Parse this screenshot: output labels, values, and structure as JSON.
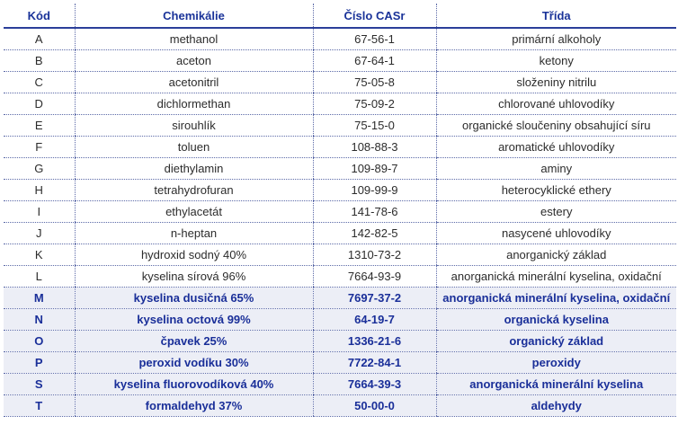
{
  "colors": {
    "header_text": "#1a3399",
    "highlight_text": "#1a2f99",
    "highlight_bg": "#eceef6",
    "body_text": "#2c2c2c"
  },
  "headers": {
    "code": "Kód",
    "chemical": "Chemikálie",
    "cas": "Číslo CASr",
    "class": "Třída"
  },
  "rows": [
    {
      "code": "A",
      "chemical": "methanol",
      "cas": "67-56-1",
      "class": "primární alkoholy",
      "highlight": false
    },
    {
      "code": "B",
      "chemical": "aceton",
      "cas": "67-64-1",
      "class": "ketony",
      "highlight": false
    },
    {
      "code": "C",
      "chemical": "acetonitril",
      "cas": "75-05-8",
      "class": "složeniny nitrilu",
      "highlight": false
    },
    {
      "code": "D",
      "chemical": "dichlormethan",
      "cas": "75-09-2",
      "class": "chlorované uhlovodíky",
      "highlight": false
    },
    {
      "code": "E",
      "chemical": "sirouhlík",
      "cas": "75-15-0",
      "class": "organické sloučeniny obsahující síru",
      "highlight": false
    },
    {
      "code": "F",
      "chemical": "toluen",
      "cas": "108-88-3",
      "class": "aromatické uhlovodíky",
      "highlight": false
    },
    {
      "code": "G",
      "chemical": "diethylamin",
      "cas": "109-89-7",
      "class": "aminy",
      "highlight": false
    },
    {
      "code": "H",
      "chemical": "tetrahydrofuran",
      "cas": "109-99-9",
      "class": "heterocyklické ethery",
      "highlight": false
    },
    {
      "code": "I",
      "chemical": "ethylacetát",
      "cas": "141-78-6",
      "class": "estery",
      "highlight": false
    },
    {
      "code": "J",
      "chemical": "n-heptan",
      "cas": "142-82-5",
      "class": "nasycené uhlovodíky",
      "highlight": false
    },
    {
      "code": "K",
      "chemical": "hydroxid sodný 40%",
      "cas": "1310-73-2",
      "class": "anorganický základ",
      "highlight": false
    },
    {
      "code": "L",
      "chemical": "kyselina sírová 96%",
      "cas": "7664-93-9",
      "class": "anorganická minerální kyselina, oxidační",
      "highlight": false
    },
    {
      "code": "M",
      "chemical": "kyselina dusičná 65%",
      "cas": "7697-37-2",
      "class": "anorganická minerální kyselina, oxidační",
      "highlight": true
    },
    {
      "code": "N",
      "chemical": "kyselina octová 99%",
      "cas": "64-19-7",
      "class": "organická kyselina",
      "highlight": true
    },
    {
      "code": "O",
      "chemical": "čpavek 25%",
      "cas": "1336-21-6",
      "class": "organický základ",
      "highlight": true
    },
    {
      "code": "P",
      "chemical": "peroxid vodíku 30%",
      "cas": "7722-84-1",
      "class": "peroxidy",
      "highlight": true
    },
    {
      "code": "S",
      "chemical": "kyselina fluorovodíková 40%",
      "cas": "7664-39-3",
      "class": "anorganická minerální kyselina",
      "highlight": true
    },
    {
      "code": "T",
      "chemical": "formaldehyd 37%",
      "cas": "50-00-0",
      "class": "aldehydy",
      "highlight": true
    }
  ]
}
